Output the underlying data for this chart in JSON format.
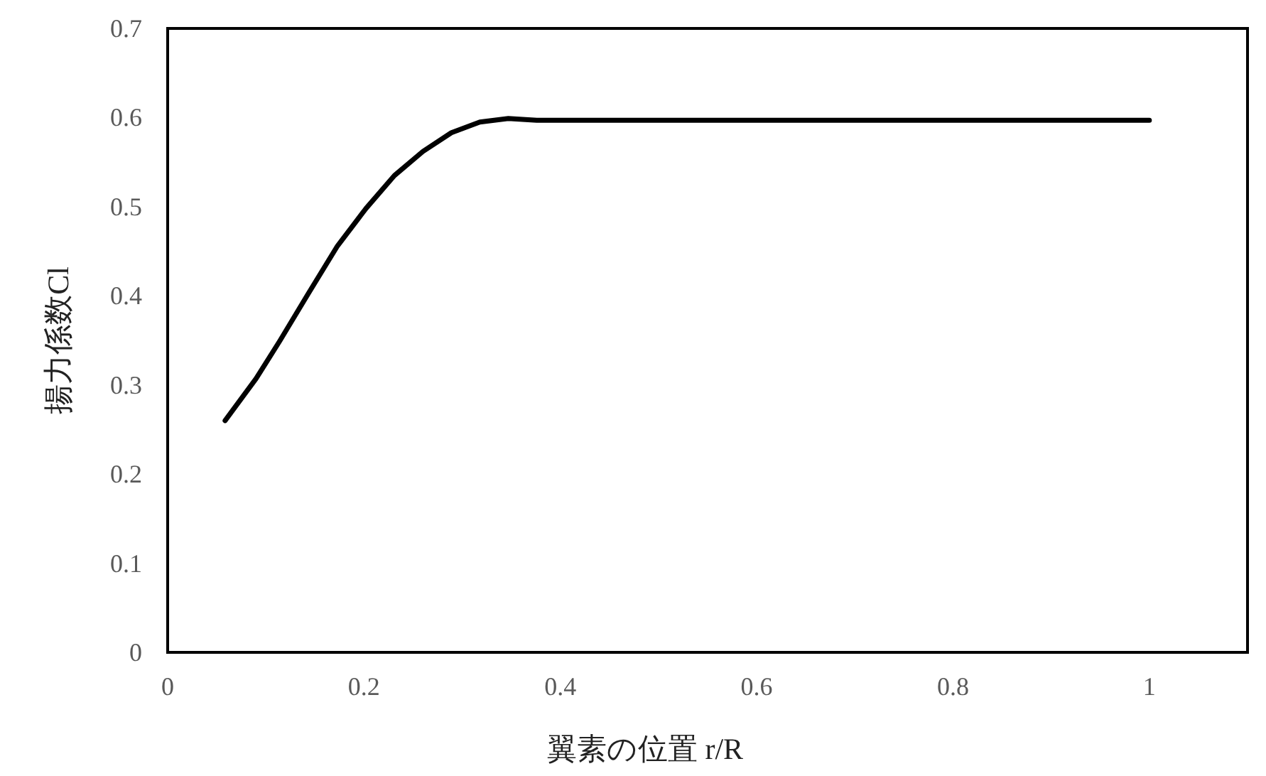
{
  "chart_data": {
    "type": "line",
    "xlabel": "翼素の位置 r/R",
    "ylabel": "揚力係数Cl",
    "xlim": [
      0,
      1.1
    ],
    "ylim": [
      0,
      0.7
    ],
    "xticks": [
      0,
      0.2,
      0.4,
      0.6,
      0.8,
      1
    ],
    "yticks": [
      0,
      0.1,
      0.2,
      0.3,
      0.4,
      0.5,
      0.6,
      0.7
    ],
    "grid": false,
    "marker": "none",
    "line_style": "solid",
    "series": [
      {
        "color": "#000000",
        "x": [
          0.0585,
          0.09,
          0.114,
          0.143,
          0.173,
          0.202,
          0.231,
          0.26,
          0.289,
          0.318,
          0.347,
          0.376,
          1
        ],
        "values": [
          0.26,
          0.307,
          0.349,
          0.402,
          0.456,
          0.498,
          0.535,
          0.562,
          0.583,
          0.595,
          0.599,
          0.597,
          0.597
        ]
      }
    ]
  }
}
